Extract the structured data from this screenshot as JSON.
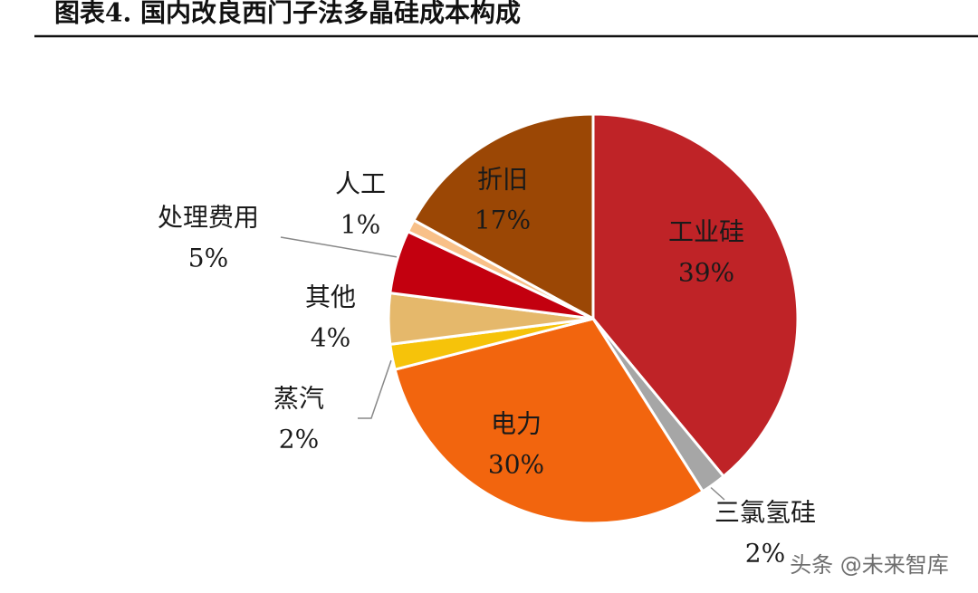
{
  "chart_data": {
    "type": "pie",
    "title": "图表4.   国内改良西门子法多晶硅成本构成",
    "categories": [
      "工业硅",
      "三氯氢硅",
      "电力",
      "蒸汽",
      "其他",
      "处理费用",
      "人工",
      "折旧"
    ],
    "values": [
      39,
      2,
      30,
      2,
      4,
      5,
      1,
      17
    ],
    "value_labels": [
      "39%",
      "2%",
      "30%",
      "2%",
      "4%",
      "5%",
      "1%",
      "17%"
    ],
    "colors": [
      "#bf2327",
      "#a6a6a6",
      "#f2650e",
      "#f6c30a",
      "#e5b86b",
      "#c3000f",
      "#f8c088",
      "#9b4705"
    ],
    "watermark": "头条 @未来智库"
  }
}
